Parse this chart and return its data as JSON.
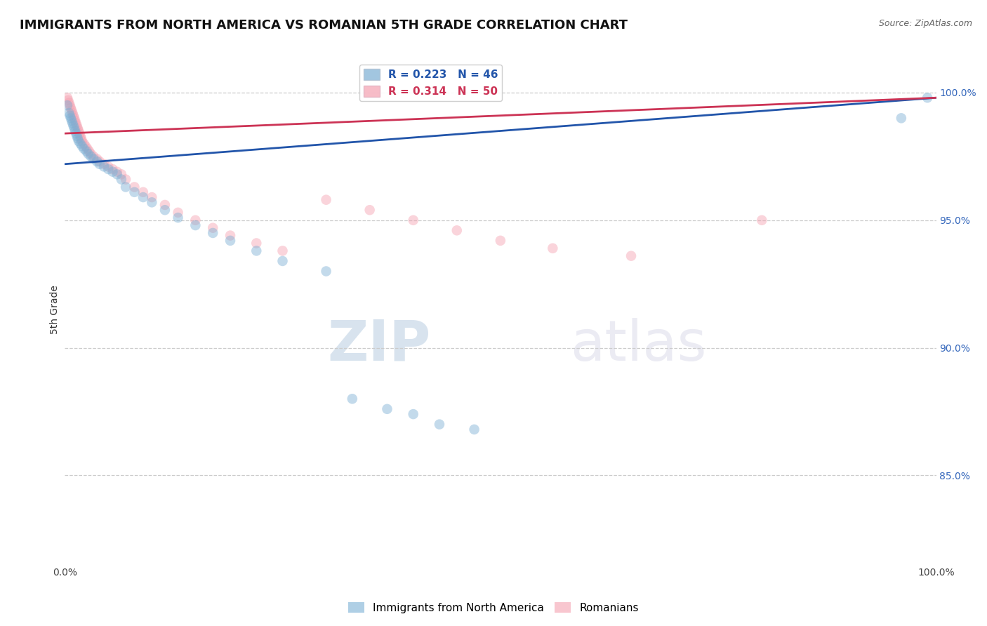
{
  "title": "IMMIGRANTS FROM NORTH AMERICA VS ROMANIAN 5TH GRADE CORRELATION CHART",
  "source": "Source: ZipAtlas.com",
  "ylabel": "5th Grade",
  "xlabel": "",
  "legend_labels": [
    "Immigrants from North America",
    "Romanians"
  ],
  "r_blue": 0.223,
  "n_blue": 46,
  "r_pink": 0.314,
  "n_pink": 50,
  "color_blue": "#7BAFD4",
  "color_pink": "#F4A0B0",
  "line_blue": "#2255AA",
  "line_pink": "#CC3355",
  "alpha_scatter": 0.45,
  "marker_size": 110,
  "xlim": [
    0.0,
    1.0
  ],
  "ylim": [
    0.815,
    1.015
  ],
  "yticks": [
    0.85,
    0.9,
    0.95,
    1.0
  ],
  "ytick_labels": [
    "85.0%",
    "90.0%",
    "95.0%",
    "100.0%"
  ],
  "xticks": [
    0.0,
    0.25,
    0.5,
    0.75,
    1.0
  ],
  "xtick_labels": [
    "0.0%",
    "",
    "",
    "",
    "100.0%"
  ],
  "blue_x": [
    0.003,
    0.005,
    0.006,
    0.007,
    0.008,
    0.009,
    0.01,
    0.011,
    0.012,
    0.013,
    0.014,
    0.015,
    0.016,
    0.018,
    0.02,
    0.022,
    0.025,
    0.027,
    0.03,
    0.033,
    0.037,
    0.04,
    0.045,
    0.05,
    0.055,
    0.06,
    0.065,
    0.07,
    0.08,
    0.09,
    0.1,
    0.115,
    0.13,
    0.15,
    0.17,
    0.19,
    0.22,
    0.25,
    0.3,
    0.33,
    0.37,
    0.4,
    0.43,
    0.47,
    0.96,
    0.99
  ],
  "blue_y": [
    0.995,
    0.992,
    0.991,
    0.99,
    0.989,
    0.988,
    0.987,
    0.986,
    0.985,
    0.984,
    0.983,
    0.982,
    0.981,
    0.98,
    0.979,
    0.978,
    0.977,
    0.976,
    0.975,
    0.974,
    0.973,
    0.972,
    0.971,
    0.97,
    0.969,
    0.968,
    0.966,
    0.963,
    0.961,
    0.959,
    0.957,
    0.954,
    0.951,
    0.948,
    0.945,
    0.942,
    0.938,
    0.934,
    0.93,
    0.88,
    0.876,
    0.874,
    0.87,
    0.868,
    0.99,
    0.998
  ],
  "pink_x": [
    0.003,
    0.004,
    0.005,
    0.006,
    0.007,
    0.008,
    0.009,
    0.01,
    0.011,
    0.012,
    0.013,
    0.014,
    0.015,
    0.016,
    0.017,
    0.018,
    0.019,
    0.02,
    0.022,
    0.024,
    0.026,
    0.028,
    0.03,
    0.033,
    0.037,
    0.04,
    0.045,
    0.05,
    0.055,
    0.06,
    0.065,
    0.07,
    0.08,
    0.09,
    0.1,
    0.115,
    0.13,
    0.15,
    0.17,
    0.19,
    0.22,
    0.25,
    0.3,
    0.35,
    0.4,
    0.45,
    0.5,
    0.56,
    0.65,
    0.8
  ],
  "pink_y": [
    0.998,
    0.997,
    0.996,
    0.995,
    0.994,
    0.993,
    0.992,
    0.991,
    0.99,
    0.989,
    0.988,
    0.987,
    0.986,
    0.985,
    0.984,
    0.983,
    0.982,
    0.981,
    0.98,
    0.979,
    0.978,
    0.977,
    0.976,
    0.975,
    0.974,
    0.973,
    0.972,
    0.971,
    0.97,
    0.969,
    0.968,
    0.966,
    0.963,
    0.961,
    0.959,
    0.956,
    0.953,
    0.95,
    0.947,
    0.944,
    0.941,
    0.938,
    0.958,
    0.954,
    0.95,
    0.946,
    0.942,
    0.939,
    0.936,
    0.95
  ],
  "watermark_zip": "ZIP",
  "watermark_atlas": "atlas",
  "background_color": "#FFFFFF",
  "grid_color": "#CCCCCC",
  "title_fontsize": 13,
  "axis_label_fontsize": 10,
  "tick_fontsize": 10,
  "tick_color_y": "#3366BB",
  "tick_color_x": "#444444",
  "legend_fontsize": 11,
  "legend_text_blue": "R = 0.223   N = 46",
  "legend_text_pink": "R = 0.314   N = 50"
}
